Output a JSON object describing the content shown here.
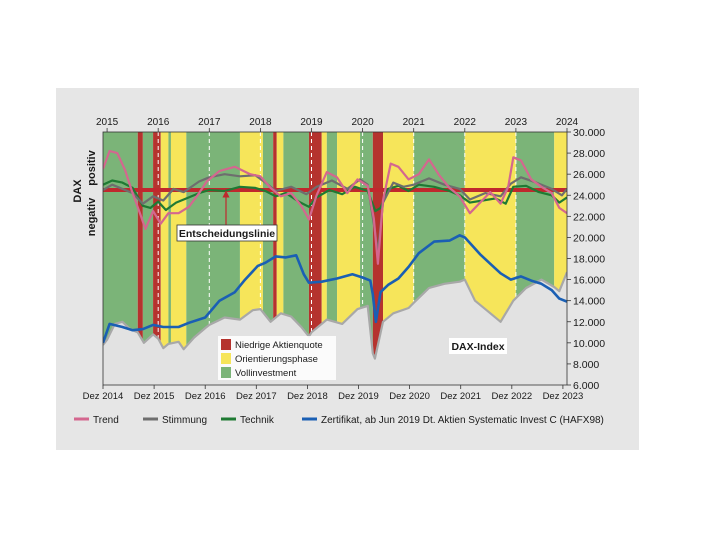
{
  "chart_data": {
    "type": "line",
    "top_year_ticks": [
      "2015",
      "2016",
      "2017",
      "2018",
      "2019",
      "2020",
      "2021",
      "2022",
      "2023",
      "2024"
    ],
    "bottom_ticks": [
      "Dez 2014",
      "Dez 2015",
      "Dez 2016",
      "Dez 2017",
      "Dez 2018",
      "Dez 2019",
      "Dez 2020",
      "Dez 2021",
      "Dez 2022",
      "Dez 2023"
    ],
    "xlim": [
      "2014-12",
      "2024-01"
    ],
    "y_right_ticks": [
      "30.000",
      "28.000",
      "26.000",
      "24.000",
      "22.000",
      "20.000",
      "18.000",
      "16.000",
      "14.000",
      "12.000",
      "10.000",
      "8.000",
      "6.000"
    ],
    "ylim": [
      6000,
      30000
    ],
    "grid": "vertical dashed at year boundaries",
    "left_axis": {
      "top": "positiv",
      "bottom": "negativ",
      "label": "DAX"
    },
    "decision_line": {
      "label": "Entscheidungslinie",
      "value": 24500,
      "color": "#c0282d"
    },
    "phase_legend": [
      {
        "label": "Niedrige Aktienquote",
        "color": "#b5332e"
      },
      {
        "label": "Orientierungsphase",
        "color": "#f6e55a"
      },
      {
        "label": "Vollinvestment",
        "color": "#7bb478"
      }
    ],
    "phases": [
      {
        "phase": "invested",
        "start": 2014.92,
        "end": 2015.6
      },
      {
        "phase": "low",
        "start": 2015.6,
        "end": 2015.7
      },
      {
        "phase": "invested",
        "start": 2015.7,
        "end": 2015.9
      },
      {
        "phase": "low",
        "start": 2015.9,
        "end": 2016.05
      },
      {
        "phase": "yellow",
        "start": 2016.05,
        "end": 2016.2
      },
      {
        "phase": "invested",
        "start": 2016.2,
        "end": 2016.25
      },
      {
        "phase": "yellow",
        "start": 2016.25,
        "end": 2016.55
      },
      {
        "phase": "invested",
        "start": 2016.55,
        "end": 2017.6
      },
      {
        "phase": "yellow",
        "start": 2017.6,
        "end": 2018.05
      },
      {
        "phase": "invested",
        "start": 2018.05,
        "end": 2018.25
      },
      {
        "phase": "low",
        "start": 2018.25,
        "end": 2018.32
      },
      {
        "phase": "yellow",
        "start": 2018.32,
        "end": 2018.45
      },
      {
        "phase": "invested",
        "start": 2018.45,
        "end": 2018.95
      },
      {
        "phase": "low",
        "start": 2018.95,
        "end": 2019.2
      },
      {
        "phase": "yellow",
        "start": 2019.2,
        "end": 2019.3
      },
      {
        "phase": "invested",
        "start": 2019.3,
        "end": 2019.5
      },
      {
        "phase": "yellow",
        "start": 2019.5,
        "end": 2019.95
      },
      {
        "phase": "invested",
        "start": 2019.95,
        "end": 2020.2
      },
      {
        "phase": "low",
        "start": 2020.2,
        "end": 2020.4
      },
      {
        "phase": "yellow",
        "start": 2020.4,
        "end": 2021.0
      },
      {
        "phase": "invested",
        "start": 2021.0,
        "end": 2022.0
      },
      {
        "phase": "yellow",
        "start": 2022.0,
        "end": 2023.0
      },
      {
        "phase": "invested",
        "start": 2023.0,
        "end": 2023.75
      },
      {
        "phase": "yellow",
        "start": 2023.75,
        "end": 2024.0
      }
    ],
    "series": [
      {
        "name": "DAX-Index",
        "color": "#a8a8a8",
        "points": [
          [
            2014.92,
            9800
          ],
          [
            2015.0,
            10300
          ],
          [
            2015.15,
            11800
          ],
          [
            2015.3,
            12000
          ],
          [
            2015.45,
            11300
          ],
          [
            2015.6,
            11000
          ],
          [
            2015.72,
            10000
          ],
          [
            2015.9,
            10800
          ],
          [
            2016.0,
            10400
          ],
          [
            2016.1,
            9500
          ],
          [
            2016.2,
            9900
          ],
          [
            2016.4,
            10100
          ],
          [
            2016.5,
            9400
          ],
          [
            2016.7,
            10500
          ],
          [
            2016.92,
            11400
          ],
          [
            2017.0,
            11700
          ],
          [
            2017.3,
            12400
          ],
          [
            2017.6,
            12200
          ],
          [
            2017.85,
            13100
          ],
          [
            2018.0,
            13200
          ],
          [
            2018.2,
            12000
          ],
          [
            2018.4,
            12800
          ],
          [
            2018.6,
            12500
          ],
          [
            2018.8,
            11500
          ],
          [
            2018.95,
            10600
          ],
          [
            2019.0,
            11000
          ],
          [
            2019.3,
            12200
          ],
          [
            2019.6,
            11800
          ],
          [
            2019.9,
            13200
          ],
          [
            2020.1,
            13500
          ],
          [
            2020.2,
            9000
          ],
          [
            2020.24,
            8500
          ],
          [
            2020.4,
            12000
          ],
          [
            2020.6,
            12800
          ],
          [
            2020.9,
            13300
          ],
          [
            2021.0,
            13800
          ],
          [
            2021.3,
            15200
          ],
          [
            2021.6,
            15600
          ],
          [
            2021.9,
            15800
          ],
          [
            2022.0,
            16000
          ],
          [
            2022.2,
            14000
          ],
          [
            2022.45,
            13000
          ],
          [
            2022.7,
            12000
          ],
          [
            2022.8,
            12800
          ],
          [
            2022.95,
            14000
          ],
          [
            2023.2,
            15200
          ],
          [
            2023.5,
            16000
          ],
          [
            2023.75,
            15300
          ],
          [
            2023.85,
            14900
          ],
          [
            2024.0,
            16700
          ]
        ]
      },
      {
        "name": "Zertifikat, ab Jun 2019 Dt. Aktien Systematic Invest C (HAFX98)",
        "color": "#1a5fb4",
        "points": [
          [
            2014.92,
            10000
          ],
          [
            2015.05,
            11800
          ],
          [
            2015.3,
            11500
          ],
          [
            2015.5,
            11200
          ],
          [
            2015.7,
            11300
          ],
          [
            2015.9,
            11700
          ],
          [
            2016.1,
            11500
          ],
          [
            2016.4,
            11500
          ],
          [
            2016.6,
            11900
          ],
          [
            2016.92,
            12400
          ],
          [
            2017.2,
            14000
          ],
          [
            2017.5,
            14800
          ],
          [
            2017.7,
            16000
          ],
          [
            2017.95,
            17300
          ],
          [
            2018.1,
            17600
          ],
          [
            2018.3,
            18200
          ],
          [
            2018.5,
            18100
          ],
          [
            2018.7,
            18300
          ],
          [
            2018.85,
            16500
          ],
          [
            2018.95,
            15700
          ],
          [
            2019.2,
            15800
          ],
          [
            2019.5,
            16100
          ],
          [
            2019.8,
            16500
          ],
          [
            2020.0,
            16200
          ],
          [
            2020.15,
            15900
          ],
          [
            2020.2,
            14600
          ],
          [
            2020.26,
            12000
          ],
          [
            2020.35,
            14800
          ],
          [
            2020.5,
            15500
          ],
          [
            2020.7,
            16100
          ],
          [
            2020.9,
            17200
          ],
          [
            2021.1,
            18500
          ],
          [
            2021.4,
            19600
          ],
          [
            2021.7,
            19700
          ],
          [
            2021.9,
            20200
          ],
          [
            2022.0,
            20000
          ],
          [
            2022.15,
            19200
          ],
          [
            2022.3,
            18400
          ],
          [
            2022.5,
            17500
          ],
          [
            2022.7,
            16600
          ],
          [
            2022.9,
            16000
          ],
          [
            2023.1,
            16300
          ],
          [
            2023.3,
            15900
          ],
          [
            2023.5,
            15600
          ],
          [
            2023.7,
            15000
          ],
          [
            2023.85,
            14200
          ],
          [
            2024.0,
            13900
          ]
        ]
      },
      {
        "name": "Trend",
        "color": "#d4678f",
        "points": [
          [
            2014.92,
            26500
          ],
          [
            2015.05,
            28200
          ],
          [
            2015.2,
            28000
          ],
          [
            2015.35,
            26400
          ],
          [
            2015.5,
            24200
          ],
          [
            2015.65,
            22200
          ],
          [
            2015.75,
            20800
          ],
          [
            2015.9,
            22500
          ],
          [
            2016.05,
            21300
          ],
          [
            2016.2,
            22300
          ],
          [
            2016.4,
            22300
          ],
          [
            2016.6,
            22900
          ],
          [
            2016.8,
            24200
          ],
          [
            2016.95,
            25300
          ],
          [
            2017.2,
            26300
          ],
          [
            2017.5,
            26700
          ],
          [
            2017.8,
            26000
          ],
          [
            2018.0,
            25800
          ],
          [
            2018.2,
            24700
          ],
          [
            2018.4,
            23900
          ],
          [
            2018.6,
            24200
          ],
          [
            2018.8,
            23000
          ],
          [
            2018.95,
            21700
          ],
          [
            2019.1,
            24000
          ],
          [
            2019.3,
            26200
          ],
          [
            2019.5,
            25700
          ],
          [
            2019.7,
            24200
          ],
          [
            2019.9,
            25500
          ],
          [
            2020.1,
            24900
          ],
          [
            2020.22,
            21800
          ],
          [
            2020.3,
            17500
          ],
          [
            2020.4,
            23500
          ],
          [
            2020.55,
            27000
          ],
          [
            2020.7,
            26700
          ],
          [
            2020.9,
            25500
          ],
          [
            2021.1,
            26000
          ],
          [
            2021.3,
            27400
          ],
          [
            2021.5,
            25900
          ],
          [
            2021.7,
            24700
          ],
          [
            2021.9,
            23900
          ],
          [
            2022.1,
            22300
          ],
          [
            2022.3,
            23300
          ],
          [
            2022.5,
            24300
          ],
          [
            2022.7,
            23200
          ],
          [
            2022.85,
            24800
          ],
          [
            2022.95,
            27600
          ],
          [
            2023.1,
            27300
          ],
          [
            2023.3,
            25500
          ],
          [
            2023.5,
            24800
          ],
          [
            2023.7,
            24200
          ],
          [
            2023.85,
            22800
          ],
          [
            2024.0,
            22300
          ]
        ]
      },
      {
        "name": "Stimmung",
        "color": "#6e6e6e",
        "points": [
          [
            2014.92,
            24500
          ],
          [
            2015.1,
            25000
          ],
          [
            2015.3,
            24600
          ],
          [
            2015.5,
            24200
          ],
          [
            2015.7,
            23200
          ],
          [
            2015.9,
            23900
          ],
          [
            2016.1,
            23500
          ],
          [
            2016.3,
            24600
          ],
          [
            2016.5,
            24300
          ],
          [
            2016.8,
            25300
          ],
          [
            2017.0,
            25700
          ],
          [
            2017.3,
            26000
          ],
          [
            2017.6,
            25800
          ],
          [
            2017.9,
            25900
          ],
          [
            2018.1,
            25200
          ],
          [
            2018.3,
            24400
          ],
          [
            2018.6,
            24800
          ],
          [
            2018.9,
            24100
          ],
          [
            2019.1,
            24800
          ],
          [
            2019.4,
            25400
          ],
          [
            2019.7,
            24600
          ],
          [
            2019.95,
            25500
          ],
          [
            2020.1,
            25000
          ],
          [
            2020.23,
            21000
          ],
          [
            2020.3,
            18500
          ],
          [
            2020.4,
            23300
          ],
          [
            2020.6,
            25200
          ],
          [
            2020.8,
            24800
          ],
          [
            2021.0,
            25000
          ],
          [
            2021.3,
            25600
          ],
          [
            2021.6,
            25000
          ],
          [
            2021.9,
            24600
          ],
          [
            2022.1,
            23600
          ],
          [
            2022.4,
            24200
          ],
          [
            2022.7,
            23900
          ],
          [
            2022.9,
            25100
          ],
          [
            2023.1,
            25700
          ],
          [
            2023.4,
            25200
          ],
          [
            2023.7,
            24600
          ],
          [
            2023.9,
            24000
          ],
          [
            2024.0,
            24600
          ]
        ]
      },
      {
        "name": "Technik",
        "color": "#1f7a33",
        "points": [
          [
            2014.92,
            25000
          ],
          [
            2015.1,
            25400
          ],
          [
            2015.3,
            25200
          ],
          [
            2015.5,
            24700
          ],
          [
            2015.7,
            23000
          ],
          [
            2015.85,
            22800
          ],
          [
            2016.0,
            23400
          ],
          [
            2016.15,
            22600
          ],
          [
            2016.35,
            23300
          ],
          [
            2016.6,
            23800
          ],
          [
            2016.8,
            24200
          ],
          [
            2017.0,
            24500
          ],
          [
            2017.3,
            24400
          ],
          [
            2017.6,
            24800
          ],
          [
            2017.9,
            24700
          ],
          [
            2018.1,
            24400
          ],
          [
            2018.3,
            23900
          ],
          [
            2018.5,
            24200
          ],
          [
            2018.75,
            23400
          ],
          [
            2018.95,
            22900
          ],
          [
            2019.1,
            23800
          ],
          [
            2019.35,
            24500
          ],
          [
            2019.6,
            24100
          ],
          [
            2019.85,
            24800
          ],
          [
            2020.1,
            24400
          ],
          [
            2020.25,
            22500
          ],
          [
            2020.35,
            22800
          ],
          [
            2020.5,
            24600
          ],
          [
            2020.7,
            24900
          ],
          [
            2020.9,
            24400
          ],
          [
            2021.1,
            25000
          ],
          [
            2021.4,
            24800
          ],
          [
            2021.7,
            24400
          ],
          [
            2021.9,
            24000
          ],
          [
            2022.1,
            23300
          ],
          [
            2022.35,
            23500
          ],
          [
            2022.6,
            23700
          ],
          [
            2022.8,
            23200
          ],
          [
            2022.95,
            24800
          ],
          [
            2023.2,
            24900
          ],
          [
            2023.45,
            24300
          ],
          [
            2023.7,
            24000
          ],
          [
            2023.85,
            23300
          ],
          [
            2024.0,
            23800
          ]
        ]
      }
    ],
    "annotations": {
      "dax_index_label": "DAX-Index"
    },
    "bottom_legend": [
      {
        "label": "Trend",
        "color": "#d4678f"
      },
      {
        "label": "Stimmung",
        "color": "#6e6e6e"
      },
      {
        "label": "Technik",
        "color": "#1f7a33"
      },
      {
        "label": "Zertifikat, ab Jun 2019 Dt. Aktien Systematic Invest C (HAFX98)",
        "color": "#1a5fb4"
      }
    ]
  }
}
